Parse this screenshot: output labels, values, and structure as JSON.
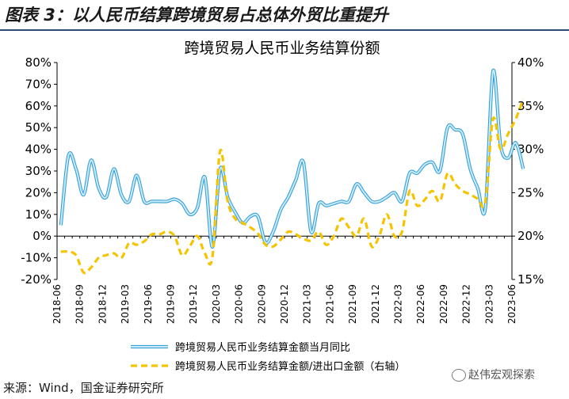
{
  "figure_title": "图表 3：以人民币结算跨境贸易占总体外贸比重提升",
  "source_text": "来源：Wind，国金证券研究所",
  "watermark_text": "赵伟宏观探索",
  "colors": {
    "line_series": "#7ecbef",
    "dash_series": "#f5c400",
    "title_rule": "#2b4a7a"
  },
  "chart_data": {
    "type": "line",
    "title": "跨境贸易人民币业务结算份额",
    "left_axis": {
      "ticks": [
        "-20%",
        "-10%",
        "0%",
        "10%",
        "20%",
        "30%",
        "40%",
        "50%",
        "60%",
        "70%",
        "80%"
      ],
      "range": [
        -20,
        80
      ]
    },
    "right_axis": {
      "ticks": [
        "15%",
        "20%",
        "25%",
        "30%",
        "35%",
        "40%"
      ],
      "range": [
        15,
        40
      ]
    },
    "x_ticks": [
      "2018-06",
      "2018-09",
      "2018-12",
      "2019-03",
      "2019-06",
      "2019-09",
      "2019-12",
      "2020-03",
      "2020-06",
      "2020-09",
      "2020-12",
      "2021-03",
      "2021-06",
      "2021-09",
      "2021-12",
      "2022-03",
      "2022-06",
      "2022-09",
      "2022-12",
      "2023-03",
      "2023-06"
    ],
    "x_start": "2018-06",
    "x_end": "2023-06",
    "legend_position": "bottom",
    "series": [
      {
        "name": "跨境贸易人民币业务结算金额当月同比",
        "axis": "left",
        "style": "solid",
        "points": [
          [
            "2018-06",
            5
          ],
          [
            "2018-07",
            37
          ],
          [
            "2018-08",
            31
          ],
          [
            "2018-09",
            19
          ],
          [
            "2018-10",
            35
          ],
          [
            "2018-11",
            22
          ],
          [
            "2018-12",
            18
          ],
          [
            "2019-01",
            31
          ],
          [
            "2019-02",
            19
          ],
          [
            "2019-03",
            16
          ],
          [
            "2019-04",
            28
          ],
          [
            "2019-05",
            16
          ],
          [
            "2019-06",
            16
          ],
          [
            "2019-07",
            16
          ],
          [
            "2019-08",
            16
          ],
          [
            "2019-09",
            17
          ],
          [
            "2019-10",
            15
          ],
          [
            "2019-11",
            10
          ],
          [
            "2019-12",
            13
          ],
          [
            "2020-01",
            27
          ],
          [
            "2020-02",
            -5
          ],
          [
            "2020-03",
            31
          ],
          [
            "2020-04",
            18
          ],
          [
            "2020-05",
            11
          ],
          [
            "2020-06",
            6
          ],
          [
            "2020-07",
            9
          ],
          [
            "2020-08",
            9
          ],
          [
            "2020-09",
            -3
          ],
          [
            "2020-10",
            2
          ],
          [
            "2020-11",
            12
          ],
          [
            "2020-12",
            18
          ],
          [
            "2021-01",
            26
          ],
          [
            "2021-02",
            34
          ],
          [
            "2021-03",
            2
          ],
          [
            "2021-04",
            15
          ],
          [
            "2021-05",
            14
          ],
          [
            "2021-06",
            15
          ],
          [
            "2021-07",
            16
          ],
          [
            "2021-08",
            16
          ],
          [
            "2021-09",
            24
          ],
          [
            "2021-10",
            20
          ],
          [
            "2021-11",
            16
          ],
          [
            "2021-12",
            16
          ],
          [
            "2022-01",
            18
          ],
          [
            "2022-02",
            20
          ],
          [
            "2022-03",
            16
          ],
          [
            "2022-04",
            29
          ],
          [
            "2022-05",
            29
          ],
          [
            "2022-06",
            33
          ],
          [
            "2022-07",
            34
          ],
          [
            "2022-08",
            30
          ],
          [
            "2022-09",
            50
          ],
          [
            "2022-10",
            49
          ],
          [
            "2022-11",
            47
          ],
          [
            "2022-12",
            31
          ],
          [
            "2023-01",
            22
          ],
          [
            "2023-02",
            13
          ],
          [
            "2023-03",
            76
          ],
          [
            "2023-04",
            42
          ],
          [
            "2023-05",
            36
          ],
          [
            "2023-06",
            43
          ],
          [
            "2023-07",
            31
          ]
        ]
      },
      {
        "name": "跨境贸易人民币业务结算金额/进出口金额（右轴）",
        "axis": "right",
        "style": "dashed",
        "points": [
          [
            "2018-06",
            18.2
          ],
          [
            "2018-07",
            18.2
          ],
          [
            "2018-08",
            17.8
          ],
          [
            "2018-09",
            15.8
          ],
          [
            "2018-10",
            16.4
          ],
          [
            "2018-11",
            17.5
          ],
          [
            "2018-12",
            17.8
          ],
          [
            "2019-01",
            18.0
          ],
          [
            "2019-02",
            17.5
          ],
          [
            "2019-03",
            19.2
          ],
          [
            "2019-04",
            19.0
          ],
          [
            "2019-05",
            19.4
          ],
          [
            "2019-06",
            20.2
          ],
          [
            "2019-07",
            20.2
          ],
          [
            "2019-08",
            20.5
          ],
          [
            "2019-09",
            20.0
          ],
          [
            "2019-10",
            17.8
          ],
          [
            "2019-11",
            18.8
          ],
          [
            "2019-12",
            20.0
          ],
          [
            "2020-01",
            18.0
          ],
          [
            "2020-02",
            17.6
          ],
          [
            "2020-03",
            29.8
          ],
          [
            "2020-04",
            24.0
          ],
          [
            "2020-05",
            22.0
          ],
          [
            "2020-06",
            21.5
          ],
          [
            "2020-07",
            21.0
          ],
          [
            "2020-08",
            20.3
          ],
          [
            "2020-09",
            19.0
          ],
          [
            "2020-10",
            18.8
          ],
          [
            "2020-11",
            19.6
          ],
          [
            "2020-12",
            20.5
          ],
          [
            "2021-01",
            20.2
          ],
          [
            "2021-02",
            19.7
          ],
          [
            "2021-03",
            19.5
          ],
          [
            "2021-04",
            20.5
          ],
          [
            "2021-05",
            19.0
          ],
          [
            "2021-06",
            20.0
          ],
          [
            "2021-07",
            22.0
          ],
          [
            "2021-08",
            21.0
          ],
          [
            "2021-09",
            20.0
          ],
          [
            "2021-10",
            22.0
          ],
          [
            "2021-11",
            18.8
          ],
          [
            "2021-12",
            20.0
          ],
          [
            "2022-01",
            22.5
          ],
          [
            "2022-02",
            20.0
          ],
          [
            "2022-03",
            20.5
          ],
          [
            "2022-04",
            25.2
          ],
          [
            "2022-05",
            23.5
          ],
          [
            "2022-06",
            24.2
          ],
          [
            "2022-07",
            25.2
          ],
          [
            "2022-08",
            24.0
          ],
          [
            "2022-09",
            27.2
          ],
          [
            "2022-10",
            26.0
          ],
          [
            "2022-11",
            25.2
          ],
          [
            "2022-12",
            24.8
          ],
          [
            "2023-01",
            24.3
          ],
          [
            "2023-02",
            24.0
          ],
          [
            "2023-03",
            33.5
          ],
          [
            "2023-04",
            30.0
          ],
          [
            "2023-05",
            31.8
          ],
          [
            "2023-06",
            33.5
          ],
          [
            "2023-07",
            35.8
          ]
        ]
      }
    ]
  }
}
